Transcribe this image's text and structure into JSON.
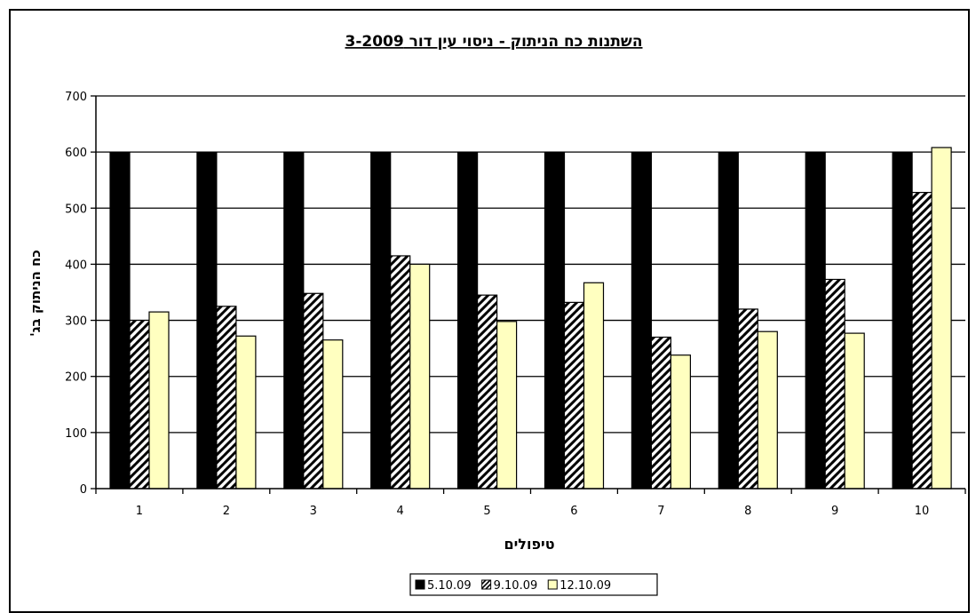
{
  "chart_data": {
    "type": "bar",
    "title": "השתנות כח הניתוק - ניסוי עין דור 3-2009",
    "xlabel": "טיפולים",
    "ylabel": "כח הניתוק בג'",
    "categories": [
      "1",
      "2",
      "3",
      "4",
      "5",
      "6",
      "7",
      "8",
      "9",
      "10"
    ],
    "ylim": [
      0,
      700
    ],
    "yticks": [
      0,
      100,
      200,
      300,
      400,
      500,
      600,
      700
    ],
    "grid": true,
    "legend_position": "bottom",
    "series": [
      {
        "name": "5.10.09",
        "color": "#000000",
        "pattern": "solid",
        "values": [
          600,
          600,
          600,
          600,
          600,
          600,
          600,
          600,
          600,
          600
        ]
      },
      {
        "name": "9.10.09",
        "color": "#000000",
        "pattern": "hatch",
        "values": [
          300,
          325,
          348,
          415,
          345,
          332,
          270,
          320,
          373,
          528
        ]
      },
      {
        "name": "12.10.09",
        "color": "#ffffc0",
        "pattern": "solid",
        "values": [
          315,
          272,
          265,
          400,
          298,
          367,
          238,
          280,
          277,
          608
        ]
      }
    ]
  }
}
